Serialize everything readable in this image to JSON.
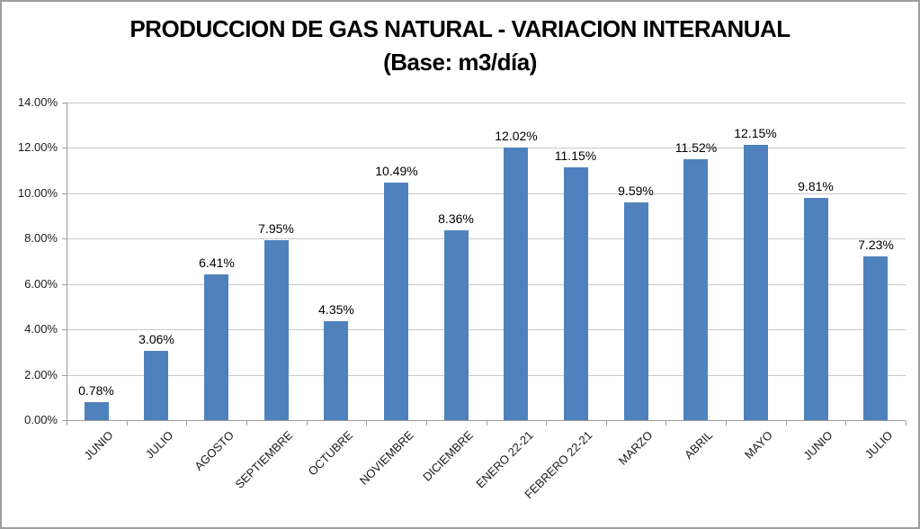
{
  "title": {
    "line1": "PRODUCCION DE GAS NATURAL - VARIACION INTERANUAL",
    "line2": "(Base: m3/día)"
  },
  "chart_data": {
    "type": "bar",
    "title": "PRODUCCION DE GAS NATURAL - VARIACION INTERANUAL (Base: m3/día)",
    "categories": [
      "JUNIO",
      "JULIO",
      "AGOSTO",
      "SEPTIEMBRE",
      "OCTUBRE",
      "NOVIEMBRE",
      "DICIEMBRE",
      "ENERO 22-21",
      "FEBRERO 22-21",
      "MARZO",
      "ABRIL",
      "MAYO",
      "JUNIO",
      "JULIO"
    ],
    "values": [
      0.78,
      3.06,
      6.41,
      7.95,
      4.35,
      10.49,
      8.36,
      12.02,
      11.15,
      9.59,
      11.52,
      12.15,
      9.81,
      7.23
    ],
    "data_labels": [
      "0.78%",
      "3.06%",
      "6.41%",
      "7.95%",
      "4.35%",
      "10.49%",
      "8.36%",
      "12.02%",
      "11.15%",
      "9.59%",
      "11.52%",
      "12.15%",
      "9.81%",
      "7.23%"
    ],
    "y_tick_labels": [
      "0.00%",
      "2.00%",
      "4.00%",
      "6.00%",
      "8.00%",
      "10.00%",
      "12.00%",
      "14.00%"
    ],
    "y_tick_step": 2,
    "ylim": [
      0,
      14
    ],
    "xlabel": "",
    "ylabel": "",
    "grid": true,
    "legend": false,
    "colors": {
      "bar_fill": "#4f81bd",
      "gridline": "#c8c8c8",
      "axis": "#9b9b9b",
      "text": "#1a1a1a",
      "title_text": "#000000",
      "background": "#ffffff",
      "frame_border": "#9e9e9e"
    }
  }
}
